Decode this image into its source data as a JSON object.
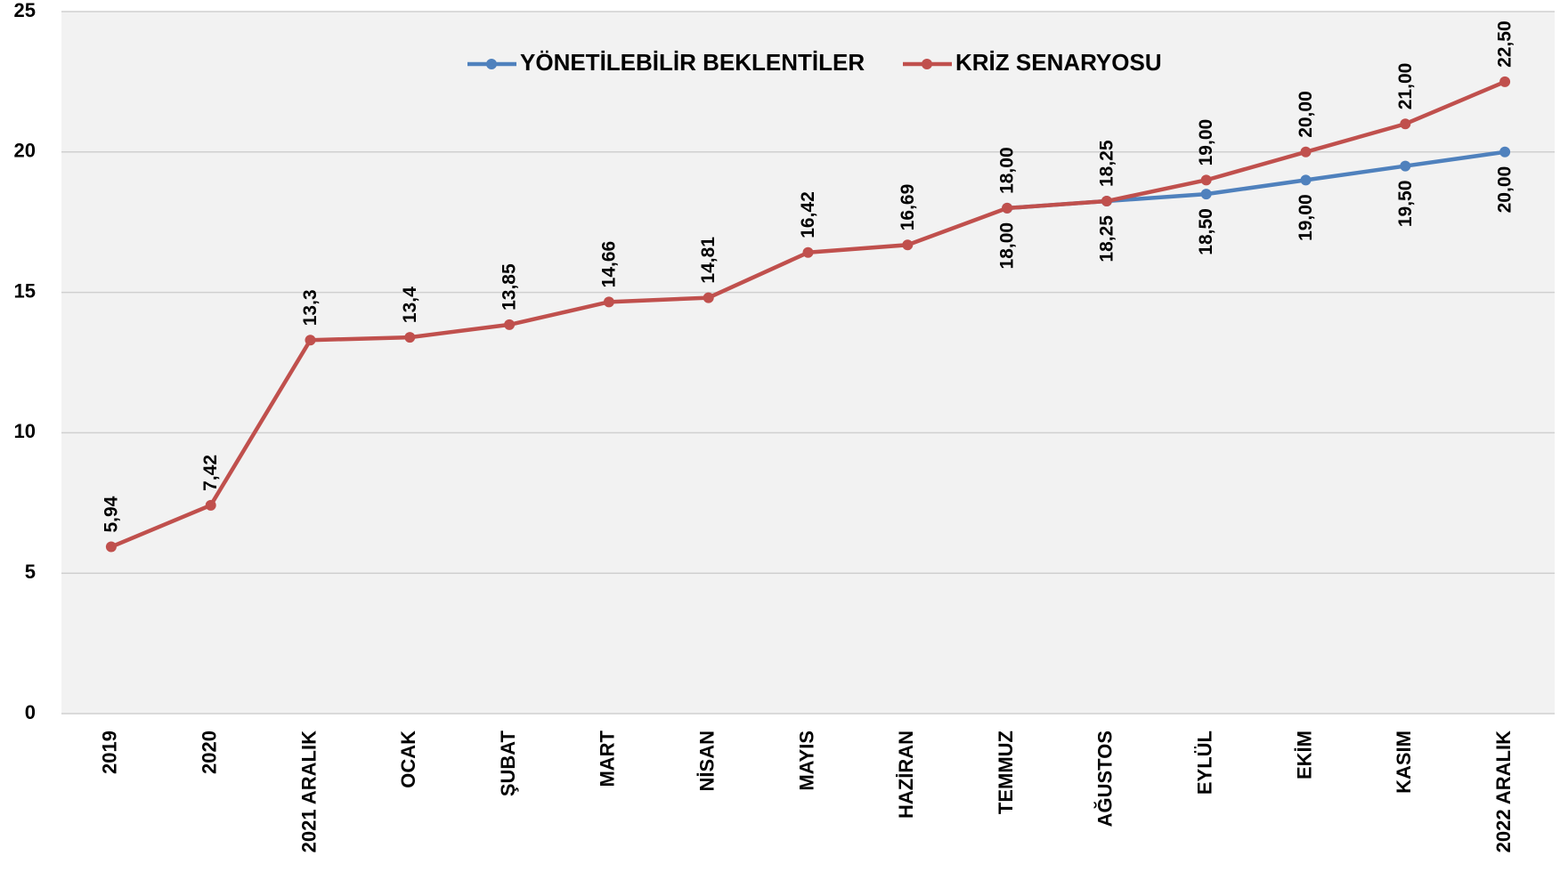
{
  "chart_data": {
    "type": "line",
    "categories": [
      "2019",
      "2020",
      "2021 ARALIK",
      "OCAK",
      "ŞUBAT",
      "MART",
      "NİSAN",
      "MAYIS",
      "HAZİRAN",
      "TEMMUZ",
      "AĞUSTOS",
      "EYLÜL",
      "EKİM",
      "KASIM",
      "2022 ARALIK"
    ],
    "series": [
      {
        "name": "YÖNETİLEBİLİR BEKLENTİLER",
        "color": "#4f81bd",
        "values": [
          null,
          null,
          null,
          null,
          null,
          null,
          null,
          null,
          null,
          18,
          18.25,
          18.5,
          19,
          19.5,
          20
        ],
        "value_labels": [
          null,
          null,
          null,
          null,
          null,
          null,
          null,
          null,
          null,
          "18,00",
          "18,25",
          "18,50",
          "19,00",
          "19,50",
          "20,00"
        ]
      },
      {
        "name": "KRİZ SENARYOSU",
        "color": "#c0504d",
        "values": [
          5.94,
          7.42,
          13.3,
          13.4,
          13.85,
          14.66,
          14.81,
          16.42,
          16.69,
          18,
          18.25,
          19,
          20,
          21,
          22.5
        ],
        "value_labels": [
          "5,94",
          "7,42",
          "13,3",
          "13,4",
          "13,85",
          "14,66",
          "14,81",
          "16,42",
          "16,69",
          "18,00",
          "18,25",
          "19,00",
          "20,00",
          "21,00",
          "22,50"
        ]
      }
    ],
    "ylim": [
      0,
      25
    ],
    "yticks": [
      0,
      5,
      10,
      15,
      20,
      25
    ],
    "grid": true,
    "legend": "top"
  }
}
